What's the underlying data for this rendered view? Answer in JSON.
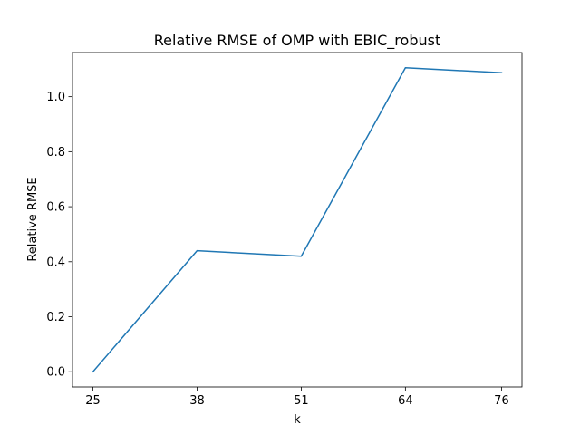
{
  "chart_data": {
    "type": "line",
    "title": "Relative RMSE of OMP with EBIC_robust",
    "xlabel": "k",
    "ylabel": "Relative RMSE",
    "x": [
      25,
      38,
      51,
      64,
      76
    ],
    "x_tick_labels": [
      "25",
      "38",
      "51",
      "64",
      "76"
    ],
    "y_ticks": [
      0.0,
      0.2,
      0.4,
      0.6,
      0.8,
      1.0
    ],
    "y_tick_labels": [
      "0.0",
      "0.2",
      "0.4",
      "0.6",
      "0.8",
      "1.0"
    ],
    "series": [
      {
        "values": [
          0.0,
          0.44,
          0.42,
          1.105,
          1.087
        ],
        "color": "#1f77b4"
      }
    ],
    "xlim": [
      22.45,
      78.55
    ],
    "ylim": [
      -0.05525,
      1.16025
    ],
    "grid": false,
    "legend": "none"
  }
}
